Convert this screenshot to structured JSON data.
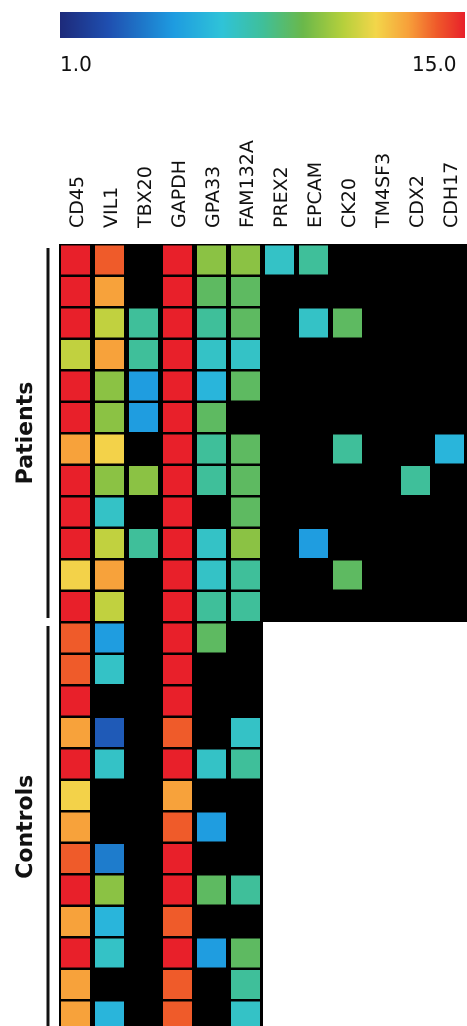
{
  "chart_data": {
    "type": "heatmap",
    "colorbar": {
      "min_label": "1.0",
      "max_label": "15.0",
      "vmin": 1,
      "vmax": 15
    },
    "genes": [
      "CD45",
      "VIL1",
      "TBX20",
      "GAPDH",
      "GPA33",
      "FAM132A",
      "PREX2",
      "EPCAM",
      "CK20",
      "TM4SF3",
      "CDX2",
      "CDH17"
    ],
    "groups": [
      {
        "label": "Patients",
        "rows": 12
      },
      {
        "label": "Controls",
        "rows": 13
      }
    ],
    "values": [
      [
        15,
        14,
        null,
        15,
        10,
        10,
        7,
        8,
        null,
        null,
        null,
        null
      ],
      [
        15,
        13,
        null,
        15,
        9,
        9,
        null,
        null,
        null,
        null,
        null,
        null
      ],
      [
        15,
        11,
        8,
        15,
        8,
        9,
        null,
        7,
        9,
        null,
        null,
        null
      ],
      [
        11,
        13,
        8,
        15,
        7,
        7,
        null,
        null,
        null,
        null,
        null,
        null
      ],
      [
        15,
        10,
        5,
        15,
        6,
        9,
        null,
        null,
        null,
        null,
        null,
        null
      ],
      [
        15,
        10,
        5,
        15,
        9,
        null,
        null,
        null,
        null,
        null,
        null,
        null
      ],
      [
        13,
        12,
        null,
        15,
        8,
        9,
        null,
        null,
        8,
        null,
        null,
        6
      ],
      [
        15,
        10,
        10,
        15,
        8,
        9,
        null,
        null,
        null,
        null,
        8,
        null
      ],
      [
        15,
        7,
        null,
        15,
        null,
        9,
        null,
        null,
        null,
        null,
        null,
        null
      ],
      [
        15,
        11,
        8,
        15,
        7,
        10,
        null,
        5,
        null,
        null,
        null,
        null
      ],
      [
        12,
        13,
        null,
        15,
        7,
        8,
        null,
        null,
        9,
        null,
        null,
        null
      ],
      [
        15,
        11,
        null,
        15,
        8,
        8,
        null,
        null,
        null,
        null,
        null,
        null
      ],
      [
        14,
        5,
        null,
        15,
        9,
        null,
        null,
        null,
        null,
        null,
        null,
        null
      ],
      [
        14,
        7,
        null,
        15,
        null,
        null,
        null,
        null,
        null,
        null,
        null,
        null
      ],
      [
        15,
        null,
        null,
        15,
        null,
        null,
        null,
        null,
        null,
        null,
        null,
        null
      ],
      [
        13,
        3,
        null,
        14,
        null,
        7,
        null,
        null,
        null,
        null,
        null,
        null
      ],
      [
        15,
        7,
        null,
        15,
        7,
        8,
        null,
        null,
        null,
        null,
        null,
        null
      ],
      [
        12,
        null,
        null,
        13,
        null,
        null,
        null,
        null,
        null,
        null,
        null,
        null
      ],
      [
        13,
        null,
        null,
        14,
        5,
        null,
        null,
        null,
        null,
        null,
        null,
        null
      ],
      [
        14,
        4,
        null,
        15,
        null,
        null,
        null,
        null,
        null,
        null,
        null,
        null
      ],
      [
        15,
        10,
        null,
        15,
        9,
        8,
        null,
        null,
        null,
        null,
        null,
        null
      ],
      [
        13,
        6,
        null,
        14,
        null,
        null,
        null,
        null,
        null,
        null,
        null,
        null
      ],
      [
        15,
        7,
        null,
        15,
        5,
        9,
        null,
        null,
        null,
        null,
        null,
        null
      ],
      [
        13,
        null,
        null,
        14,
        null,
        8,
        null,
        null,
        null,
        null,
        null,
        null
      ],
      [
        13,
        6,
        null,
        14,
        null,
        7,
        null,
        null,
        null,
        null,
        null,
        null
      ]
    ]
  }
}
